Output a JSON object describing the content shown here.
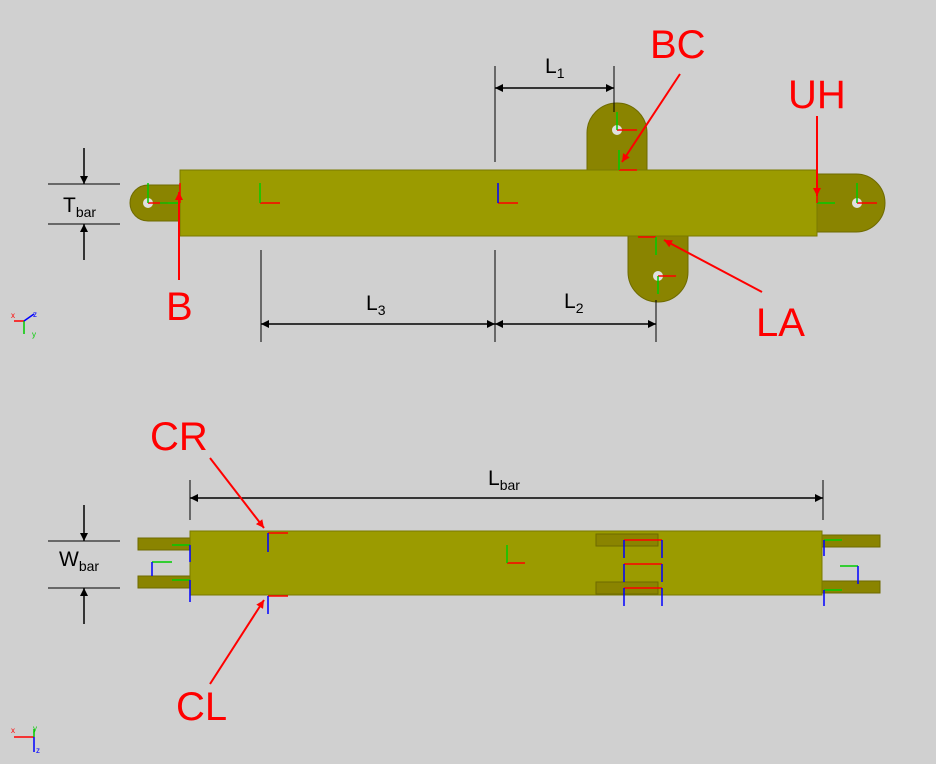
{
  "colors": {
    "background": "#d0d0d0",
    "bar_fill": "#9b9b00",
    "bar_stroke": "#7a7a00",
    "pin_fill": "#8a8400",
    "hole_fill": "#e0e0e0",
    "annotation": "#ff0000",
    "dimension": "#000000",
    "axis_x": "#ff0000",
    "axis_y": "#00cc00",
    "axis_z": "#0000ff"
  },
  "top_view": {
    "labels": {
      "B": "B",
      "BC": "BC",
      "UH": "UH",
      "LA": "LA"
    },
    "dimensions": {
      "T": {
        "main": "T",
        "sub": "bar"
      },
      "L1": {
        "main": "L",
        "sub": "1"
      },
      "L2": {
        "main": "L",
        "sub": "2"
      },
      "L3": {
        "main": "L",
        "sub": "3"
      }
    },
    "triad": {
      "x": "x",
      "z": "z",
      "y": "y"
    }
  },
  "bottom_view": {
    "labels": {
      "CR": "CR",
      "CL": "CL"
    },
    "dimensions": {
      "W": {
        "main": "W",
        "sub": "bar"
      },
      "L": {
        "main": "L",
        "sub": "bar"
      }
    },
    "triad": {
      "x": "x",
      "y": "y",
      "z": "z"
    }
  }
}
